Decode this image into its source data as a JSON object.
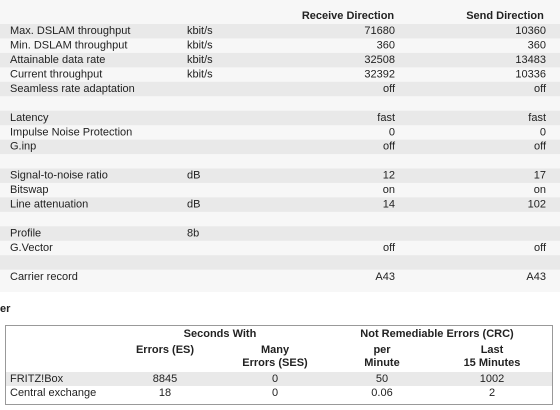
{
  "top_table": {
    "headers": [
      "Receive Direction",
      "Send Direction"
    ],
    "groups": [
      [
        {
          "label": "Max. DSLAM throughput",
          "unit": "kbit/s",
          "receive": "71680",
          "send": "10360"
        },
        {
          "label": "Min. DSLAM throughput",
          "unit": "kbit/s",
          "receive": "360",
          "send": "360"
        },
        {
          "label": "Attainable data rate",
          "unit": "kbit/s",
          "receive": "32508",
          "send": "13483"
        },
        {
          "label": "Current throughput",
          "unit": "kbit/s",
          "receive": "32392",
          "send": "10336"
        },
        {
          "label": "Seamless rate adaptation",
          "receive": "off",
          "send": "off"
        }
      ],
      [
        {
          "label": "Latency",
          "receive": "fast",
          "send": "fast"
        },
        {
          "label": "Impulse Noise Protection",
          "receive": "0",
          "send": "0"
        },
        {
          "label": "G.inp",
          "receive": "off",
          "send": "off"
        }
      ],
      [
        {
          "label": "Signal-to-noise ratio",
          "unit": "dB",
          "receive": "12",
          "send": "17"
        },
        {
          "label": "Bitswap",
          "receive": "on",
          "send": "on"
        },
        {
          "label": "Line attenuation",
          "unit": "dB",
          "receive": "14",
          "send": "102"
        }
      ],
      [
        {
          "label": "Profile",
          "unit": "8b"
        },
        {
          "label": "G.Vector",
          "receive": "off",
          "send": "off"
        }
      ],
      [
        {
          "label": "Carrier record",
          "receive": "A43",
          "send": "A43"
        }
      ]
    ]
  },
  "section_heading": "er",
  "error_table": {
    "group_headers": [
      "Seconds With",
      "Not Remediable Errors (CRC)"
    ],
    "columns": [
      [
        "Errors (ES)"
      ],
      [
        "Many",
        "Errors (SES)"
      ],
      [
        "per",
        "Minute"
      ],
      [
        "Last",
        "15 Minutes"
      ]
    ],
    "rows": [
      [
        "FRITZ!Box",
        "8845",
        "0",
        "50",
        "1002"
      ],
      [
        "Central exchange",
        "18",
        "0",
        "0.06",
        "2"
      ]
    ]
  }
}
